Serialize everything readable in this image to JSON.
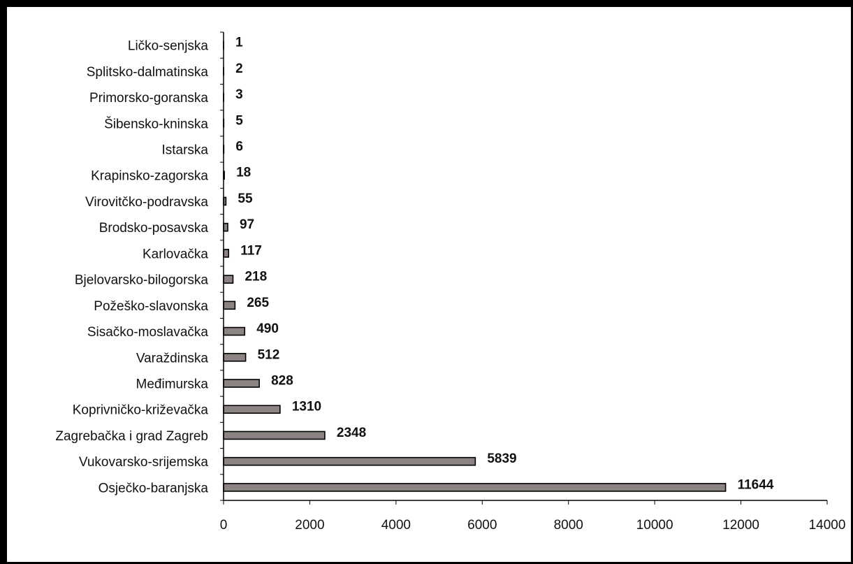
{
  "chart_data": {
    "type": "bar",
    "orientation": "horizontal",
    "title": "",
    "xlabel": "",
    "ylabel": "",
    "xlim": [
      0,
      14000
    ],
    "xticks": [
      0,
      2000,
      4000,
      6000,
      8000,
      10000,
      12000,
      14000
    ],
    "grid": false,
    "legend": "none",
    "bar_color": "#8c8482",
    "bar_edge_color": "#000000",
    "categories": [
      "Ličko-senjska",
      "Splitsko-dalmatinska",
      "Primorsko-goranska",
      "Šibensko-kninska",
      "Istarska",
      "Krapinsko-zagorska",
      "Virovitčko-podravska",
      "Brodsko-posavska",
      "Karlovačka",
      "Bjelovarsko-bilogorska",
      "Požeško-slavonska",
      "Sisačko-moslavačka",
      "Varaždinska",
      "Međimurska",
      "Koprivničko-križevačka",
      "Zagrebačka i grad Zagreb",
      "Vukovarsko-srijemska",
      "Osječko-baranjska"
    ],
    "values": [
      1,
      2,
      3,
      5,
      6,
      18,
      55,
      97,
      117,
      218,
      265,
      490,
      512,
      828,
      1310,
      2348,
      5839,
      11644
    ]
  }
}
